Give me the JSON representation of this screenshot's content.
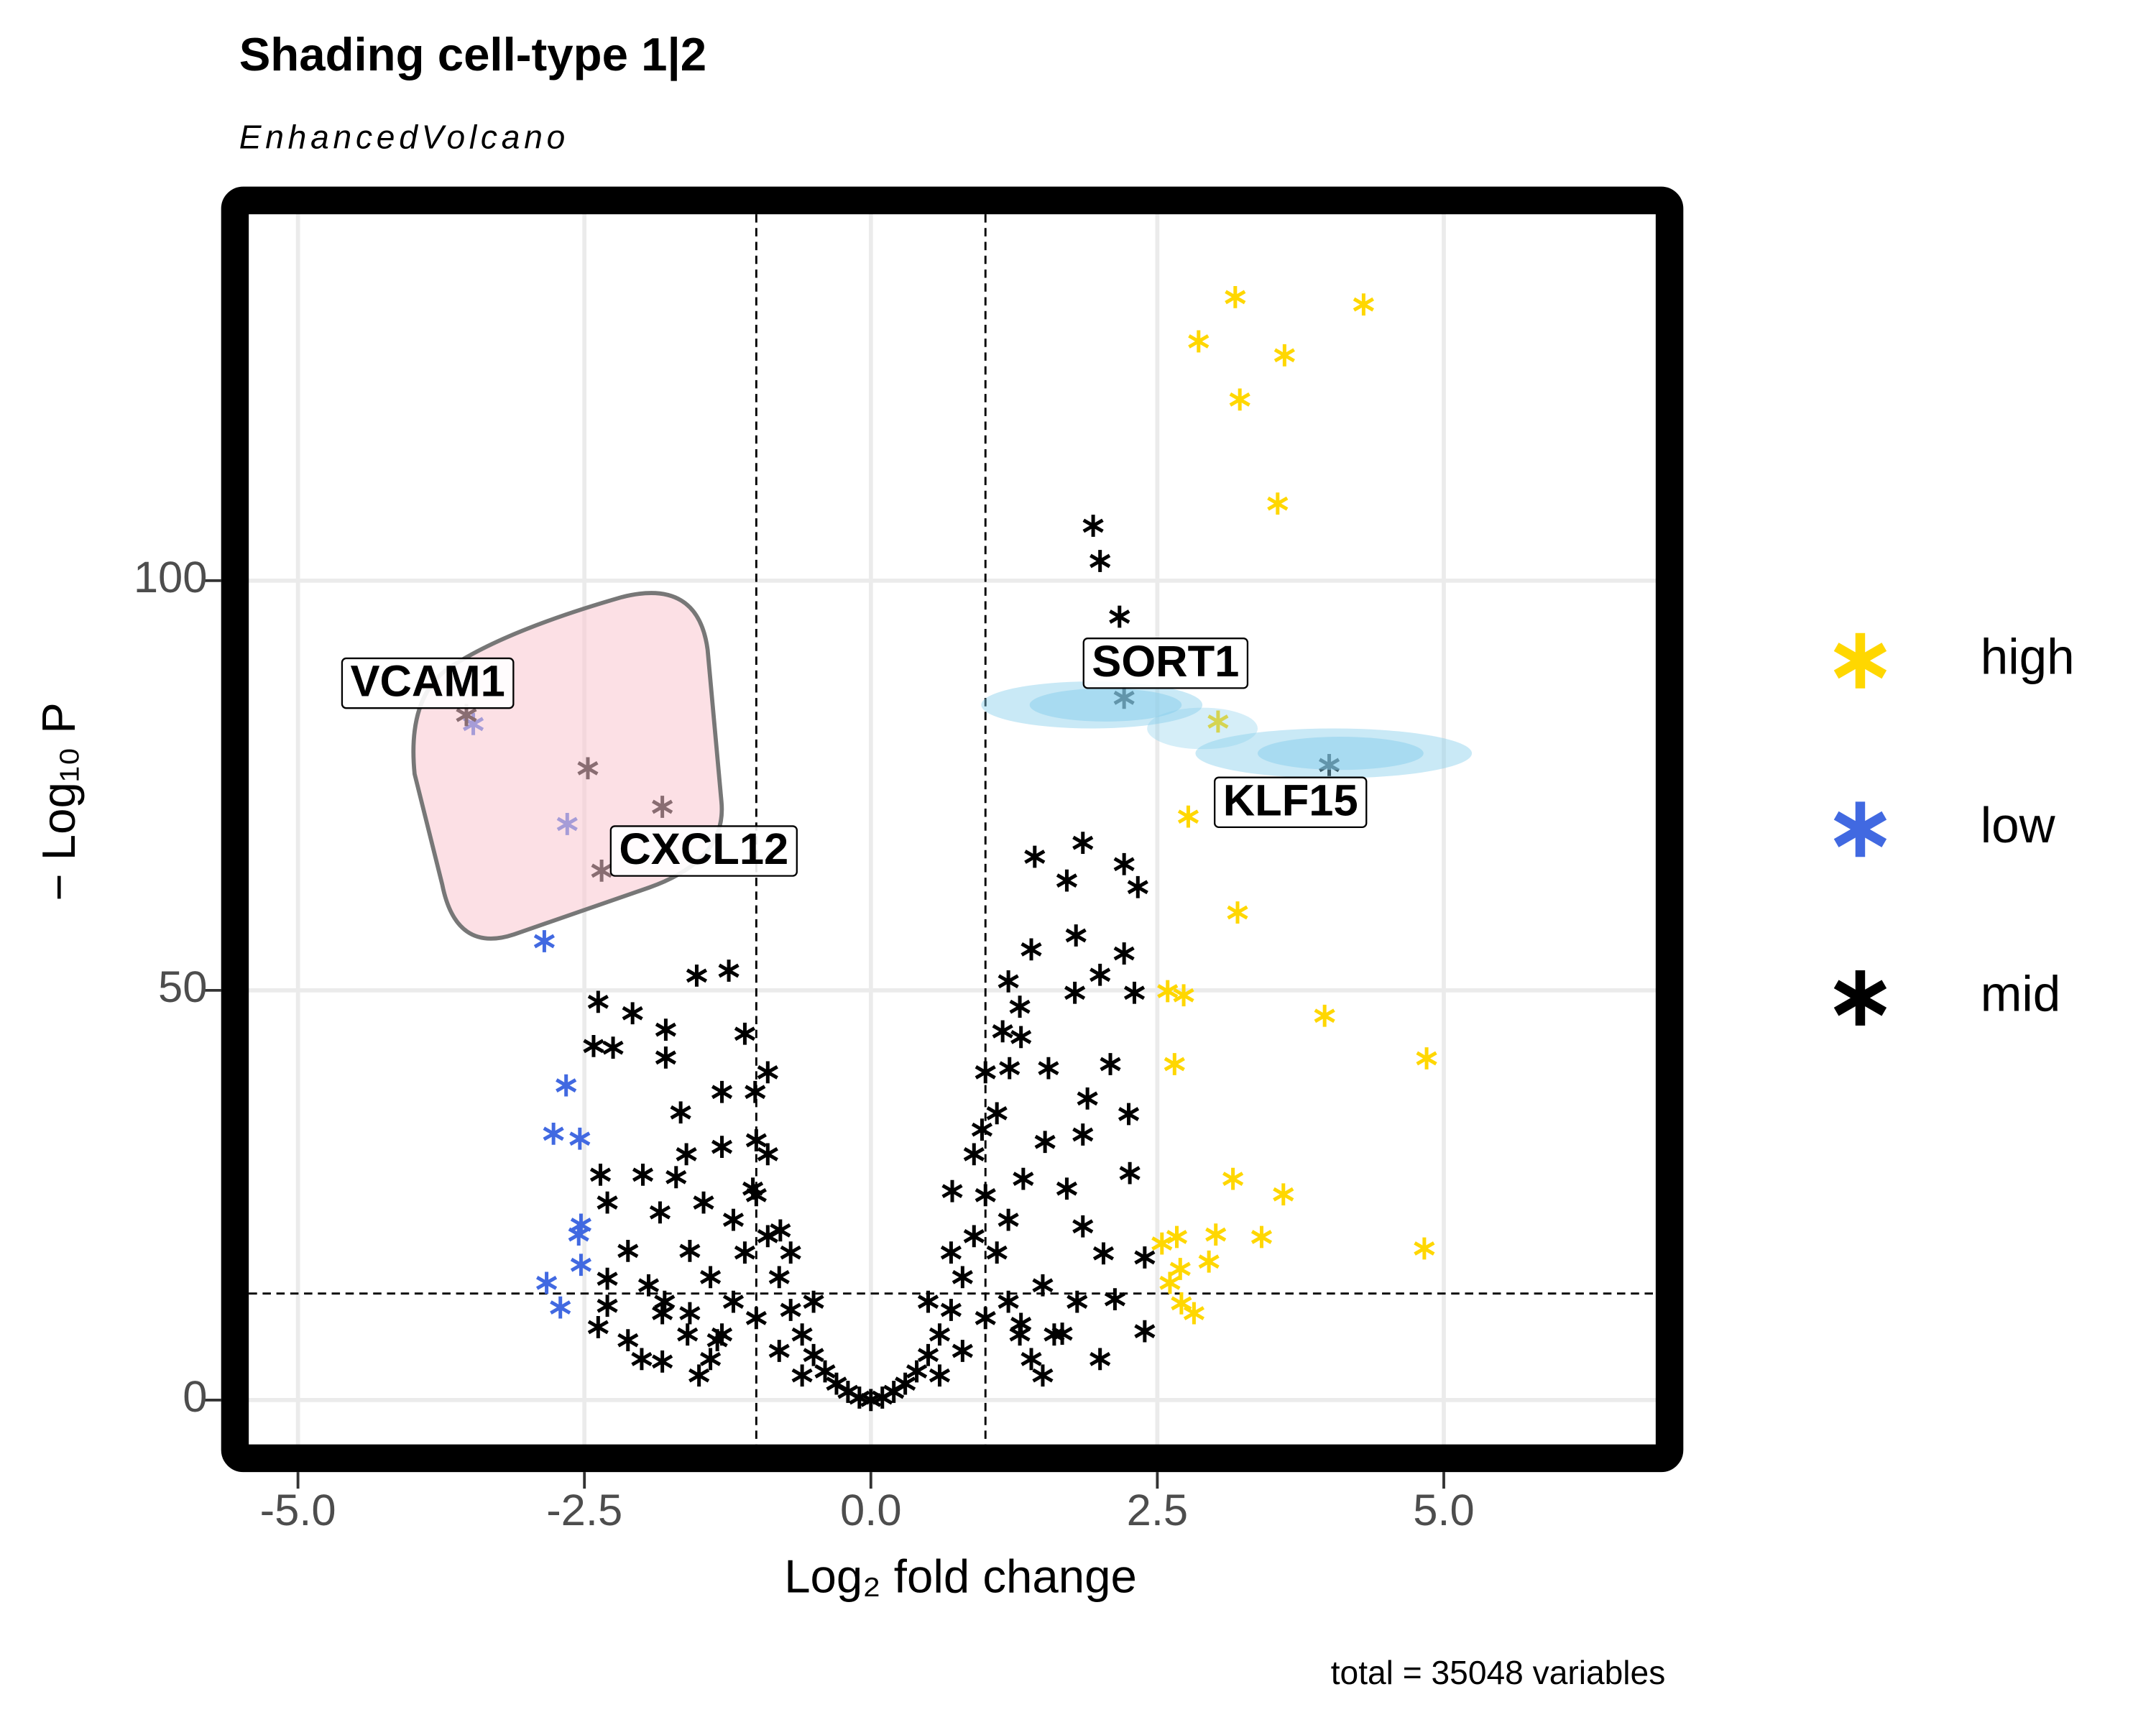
{
  "chart_data": {
    "type": "scatter",
    "title": "Shading cell-type 1|2",
    "subtitle": "EnhancedVolcano",
    "x_label": "Log₂ fold change",
    "y_label": "− Log₁₀ P",
    "caption": "total = 35048 variables",
    "xlim": [
      -5.55,
      6.97
    ],
    "ylim": [
      -7.1,
      146.4
    ],
    "xticks": [
      {
        "value": -5,
        "label": "-5.0"
      },
      -2.5,
      {
        "value": 0,
        "label": "0.0"
      },
      2.5,
      {
        "value": 5,
        "label": "5.0"
      }
    ],
    "yticks": [
      0,
      50,
      100
    ],
    "grid": true,
    "cutoff_x": [
      -1,
      1
    ],
    "cutoff_y": 13,
    "legend": "right",
    "series": [
      {
        "name": "high",
        "color": "#ffd700",
        "x": [
          3.18,
          4.3,
          2.86,
          3.61,
          3.22,
          3.55,
          3.03,
          2.77,
          3.2,
          2.59,
          2.73,
          3.96,
          4.85,
          2.65,
          3.16,
          3.6,
          2.67,
          3.01,
          3.41,
          4.83,
          2.95,
          2.7,
          2.61,
          2.71,
          2.82,
          2.54
        ],
        "values": [
          134.6,
          133.7,
          129.2,
          127.5,
          122.1,
          109.4,
          82.8,
          71.2,
          59.5,
          49.9,
          49.4,
          46.9,
          41.7,
          41.0,
          27.0,
          25.1,
          19.9,
          20.2,
          19.9,
          18.5,
          16.9,
          16.0,
          14.3,
          11.8,
          10.6,
          19.1
        ]
      },
      {
        "name": "low",
        "color": "#4169e1",
        "x": [
          -3.47,
          -2.65,
          -2.85,
          -2.66,
          -2.77,
          -2.54,
          -2.53,
          -2.55,
          -2.53,
          -2.83,
          -2.71
        ],
        "values": [
          82.5,
          70.3,
          56.0,
          38.4,
          32.5,
          31.9,
          21.4,
          20.2,
          16.5,
          14.3,
          11.3
        ]
      },
      {
        "name": "mid",
        "color": "#000000",
        "x": [
          -3.53,
          -1.82,
          2.21,
          4.0,
          1.94,
          2.0,
          2.17,
          -2.47,
          -2.35,
          1.43,
          1.85,
          2.21,
          1.71,
          2.33,
          1.4,
          1.79,
          2.21,
          2.0,
          1.2,
          2.3,
          1.78,
          1.31,
          1.55,
          2.09,
          1.21,
          1.89,
          2.25,
          1.52,
          1.85,
          0.97,
          1.33,
          1.71,
          2.26,
          0.71,
          2.03,
          2.39,
          1.85,
          2.13,
          2.39,
          1.67,
          1.31,
          -1.24,
          -1.52,
          -2.38,
          -2.08,
          -1.79,
          -2.25,
          -2.42,
          -1.79,
          -1.1,
          -1.66,
          -1.3,
          -1.01,
          -1.3,
          -1.61,
          -1.0,
          -1.99,
          -1.7,
          -2.36,
          -2.3,
          -1.84,
          -1.46,
          -1.03,
          -0.79,
          -2.12,
          -1.58,
          -2.3,
          -1.94,
          -2.3,
          -2.38,
          -2.12,
          -1.82,
          -1.34,
          -1.58,
          -1.82,
          -0.9,
          -0.8,
          -0.7,
          -0.6,
          -0.5,
          -0.4,
          -0.3,
          -0.2,
          -0.1,
          0,
          0.1,
          0.2,
          0.3,
          0.4,
          0.5,
          0.6,
          0.7,
          0.8,
          0.9,
          1.0,
          -1.0,
          -1.1,
          1.1,
          -1.2,
          1.2,
          -1.3,
          1.3,
          -1.4,
          1.4,
          -1.0,
          1.0,
          -0.8,
          0.8,
          -0.6,
          0.6,
          -1.5,
          1.5,
          -0.5,
          0.5,
          -0.7,
          0.7,
          -1.2,
          1.2,
          -0.9,
          0.9,
          -1.6,
          1.6,
          -2,
          2,
          1.8,
          -1.8,
          1.1,
          1.0,
          1.15,
          -0.9,
          1.3,
          1.5,
          -1.4
        ],
        "values": [
          83.6,
          72.4,
          85.7,
          77.5,
          106.7,
          102.4,
          95.6,
          77.1,
          64.6,
          66.3,
          68,
          65.4,
          63.4,
          62.6,
          55,
          56.7,
          54.5,
          51.9,
          51.1,
          49.7,
          49.7,
          44.3,
          40.5,
          41,
          40.5,
          36.8,
          34.9,
          31.5,
          32.4,
          33,
          27,
          25.8,
          27.7,
          25.5,
          17.9,
          17.4,
          21.2,
          12.3,
          8.4,
          8.1,
          9.3,
          52.4,
          51.8,
          48.6,
          47.2,
          45.2,
          43,
          43.2,
          41.8,
          44.7,
          35.1,
          37.6,
          37.6,
          30.9,
          30,
          31.7,
          27.5,
          27.2,
          27.5,
          24.1,
          22.9,
          24.1,
          25.8,
          20.7,
          18.2,
          18.2,
          14.8,
          14,
          11.5,
          8.9,
          7.3,
          4.7,
          7.3,
          10.6,
          10.6,
          20,
          15,
          11,
          8,
          5.5,
          3.5,
          2,
          1,
          0.3,
          0,
          0.3,
          1,
          2,
          3.5,
          5.5,
          8,
          11,
          15,
          20,
          25,
          25,
          18,
          18,
          12,
          12,
          8,
          8,
          5,
          5,
          10,
          10,
          6,
          6,
          3,
          3,
          3,
          3,
          12,
          12,
          18,
          18,
          22,
          22,
          30,
          30,
          8,
          8,
          5,
          5,
          12,
          12,
          35,
          40,
          45,
          40,
          48,
          14,
          15
        ]
      }
    ],
    "labels": [
      {
        "text": "VCAM1",
        "x": -3.53,
        "y": 83.6
      },
      {
        "text": "CXCL12",
        "x": -1.82,
        "y": 72.4
      },
      {
        "text": "SORT1",
        "x": 2.21,
        "y": 85.7
      },
      {
        "text": "KLF15",
        "x": 4.0,
        "y": 77.5
      }
    ]
  }
}
